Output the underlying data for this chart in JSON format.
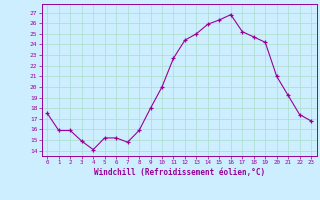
{
  "x": [
    0,
    1,
    2,
    3,
    4,
    5,
    6,
    7,
    8,
    9,
    10,
    11,
    12,
    13,
    14,
    15,
    16,
    17,
    18,
    19,
    20,
    21,
    22,
    23
  ],
  "y": [
    17.5,
    15.9,
    15.9,
    14.9,
    14.1,
    15.2,
    15.2,
    14.8,
    15.9,
    18.0,
    20.0,
    22.7,
    24.4,
    25.0,
    25.9,
    26.3,
    26.8,
    25.2,
    24.7,
    24.2,
    21.0,
    19.2,
    17.4,
    16.8
  ],
  "line_color": "#990099",
  "marker_color": "#990099",
  "bg_color": "#cceeff",
  "grid_color": "#aaddcc",
  "axis_color": "#990099",
  "tick_color": "#990099",
  "xlabel": "Windchill (Refroidissement éolien,°C)",
  "ylabel_ticks": [
    14,
    15,
    16,
    17,
    18,
    19,
    20,
    21,
    22,
    23,
    24,
    25,
    26,
    27
  ],
  "ylim": [
    13.5,
    27.8
  ],
  "xlim": [
    -0.5,
    23.5
  ]
}
